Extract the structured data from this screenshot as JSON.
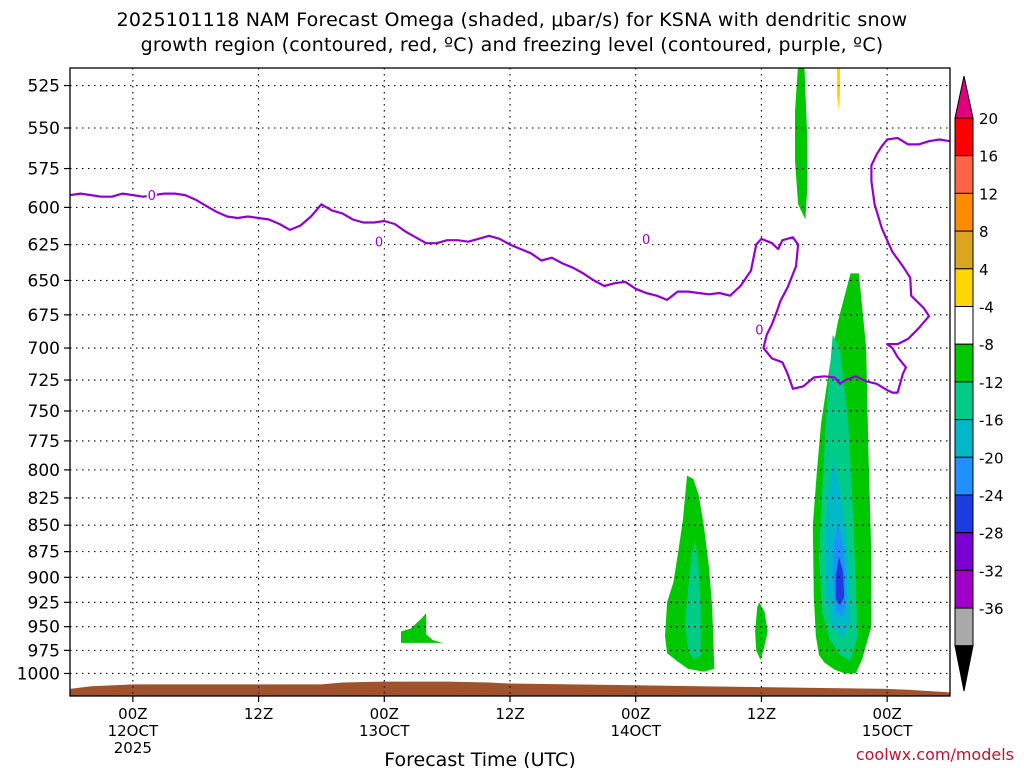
{
  "header": {
    "title_line1": "2025101118 NAM Forecast Omega (shaded, μbar/s) for KSNA with dendritic snow",
    "title_line2": "growth region (contoured, red, ºC) and freezing level (contoured, purple, ºC)"
  },
  "credit": "coolwx.com/models",
  "colors": {
    "terrain": "#a0522d",
    "freezing_line": "#9400d3",
    "grid": "#000000"
  },
  "chart_data": {
    "type": "heatmap",
    "title": "2025101118 NAM Forecast Omega (shaded, μbar/s) for KSNA with dendritic snow growth region (contoured, red, ºC) and freezing level (contoured, purple, ºC)",
    "xlabel": "Forecast Time (UTC)",
    "ylabel": "",
    "x_unit": "hours since 2025-10-11 18Z",
    "xlim": [
      0,
      84
    ],
    "ylim": [
      1025,
      515
    ],
    "y_scale": "log-pressure",
    "grid": true,
    "y_ticks": [
      525,
      550,
      575,
      600,
      625,
      650,
      675,
      700,
      725,
      750,
      775,
      800,
      825,
      850,
      875,
      900,
      925,
      950,
      975,
      1000
    ],
    "x_ticks": [
      {
        "x": 6,
        "label": "00Z",
        "sub": "12OCT",
        "sub2": "2025"
      },
      {
        "x": 18,
        "label": "12Z",
        "sub": "",
        "sub2": ""
      },
      {
        "x": 30,
        "label": "00Z",
        "sub": "13OCT",
        "sub2": ""
      },
      {
        "x": 42,
        "label": "12Z",
        "sub": "",
        "sub2": ""
      },
      {
        "x": 54,
        "label": "00Z",
        "sub": "14OCT",
        "sub2": ""
      },
      {
        "x": 66,
        "label": "12Z",
        "sub": "",
        "sub2": ""
      },
      {
        "x": 78,
        "label": "00Z",
        "sub": "15OCT",
        "sub2": ""
      }
    ],
    "colorbar": {
      "labels": [
        "20",
        "16",
        "12",
        "8",
        "4",
        "-4",
        "-8",
        "-12",
        "-16",
        "-20",
        "-24",
        "-28",
        "-32",
        "-36"
      ],
      "colors": [
        "#ff0000",
        "#ff6347",
        "#ff8c00",
        "#daa520",
        "#ffd700",
        "#ffffff",
        "#00c800",
        "#00cc88",
        "#00b8c8",
        "#1e90ff",
        "#1c3ce0",
        "#7b00d4",
        "#a000c8",
        "#a9a9a9"
      ],
      "top_arrow": "#e0007a",
      "bottom_arrow": "#000000"
    },
    "freezing_level": {
      "label": "0",
      "main": [
        [
          0,
          592
        ],
        [
          1,
          591
        ],
        [
          2,
          592
        ],
        [
          3,
          593
        ],
        [
          4,
          593
        ],
        [
          5,
          591
        ],
        [
          6,
          592
        ],
        [
          7,
          593
        ],
        [
          8,
          592
        ],
        [
          9,
          591
        ],
        [
          10,
          591
        ],
        [
          11,
          592
        ],
        [
          12,
          595
        ],
        [
          13,
          599
        ],
        [
          14,
          603
        ],
        [
          15,
          606
        ],
        [
          16,
          607
        ],
        [
          17,
          606
        ],
        [
          18,
          607
        ],
        [
          19,
          608
        ],
        [
          20,
          611
        ],
        [
          21,
          615
        ],
        [
          22,
          612
        ],
        [
          23,
          606
        ],
        [
          24,
          598
        ],
        [
          25,
          602
        ],
        [
          26,
          604
        ],
        [
          27,
          608
        ],
        [
          28,
          610
        ],
        [
          29,
          610
        ],
        [
          30,
          609
        ],
        [
          31,
          611
        ],
        [
          32,
          616
        ],
        [
          33,
          620
        ],
        [
          34,
          624
        ],
        [
          35,
          624
        ],
        [
          36,
          622
        ],
        [
          37,
          622
        ],
        [
          38,
          623
        ],
        [
          39,
          621
        ],
        [
          40,
          619
        ],
        [
          41,
          621
        ],
        [
          42,
          625
        ],
        [
          43,
          628
        ],
        [
          44,
          631
        ],
        [
          45,
          636
        ],
        [
          46,
          634
        ],
        [
          47,
          638
        ],
        [
          48,
          641
        ],
        [
          49,
          645
        ],
        [
          50,
          650
        ],
        [
          51,
          654
        ],
        [
          52,
          652
        ],
        [
          53,
          651
        ],
        [
          54,
          656
        ],
        [
          55,
          659
        ],
        [
          56,
          661
        ],
        [
          57,
          664
        ],
        [
          58,
          658
        ],
        [
          59,
          658
        ],
        [
          60,
          659
        ],
        [
          61,
          660
        ],
        [
          62,
          659
        ],
        [
          63,
          661
        ],
        [
          64,
          654
        ],
        [
          65,
          643
        ],
        [
          65.5,
          625
        ],
        [
          66,
          621
        ],
        [
          67,
          624
        ],
        [
          67.6,
          628
        ],
        [
          68,
          622
        ],
        [
          69,
          620
        ],
        [
          69.5,
          625
        ],
        [
          69.3,
          640
        ],
        [
          68.5,
          655
        ],
        [
          67.8,
          665
        ],
        [
          67.5,
          672
        ],
        [
          67,
          682
        ],
        [
          66.5,
          690
        ],
        [
          66.2,
          700
        ],
        [
          67,
          708
        ],
        [
          68,
          711
        ],
        [
          68.5,
          720
        ],
        [
          69,
          732
        ],
        [
          70,
          730
        ],
        [
          71,
          723
        ],
        [
          72,
          722
        ],
        [
          73,
          723
        ],
        [
          73.5,
          728
        ],
        [
          74,
          725
        ],
        [
          75,
          722
        ],
        [
          76,
          726
        ],
        [
          77,
          728
        ],
        [
          78,
          733
        ],
        [
          78.5,
          735
        ],
        [
          79,
          735
        ],
        [
          79.5,
          720
        ],
        [
          79.8,
          715
        ],
        [
          79,
          707
        ],
        [
          78.5,
          700
        ],
        [
          78,
          697
        ],
        [
          79,
          697
        ],
        [
          80,
          693
        ],
        [
          81,
          685
        ],
        [
          82,
          676
        ],
        [
          81.5,
          670
        ],
        [
          80.3,
          661
        ],
        [
          80.2,
          648
        ],
        [
          79.5,
          640
        ],
        [
          78.5,
          630
        ],
        [
          77.5,
          614
        ],
        [
          76.8,
          598
        ],
        [
          76.5,
          583
        ],
        [
          76.5,
          573
        ],
        [
          77,
          566
        ],
        [
          77.5,
          561
        ],
        [
          78,
          557
        ],
        [
          79,
          556
        ],
        [
          80,
          560
        ],
        [
          81,
          560
        ],
        [
          82,
          558
        ],
        [
          83,
          557
        ],
        [
          84,
          558
        ]
      ]
    },
    "omega_regions": [
      {
        "level": -4,
        "color": "#00c800",
        "points": [
          [
            31.6,
            955
          ],
          [
            32.5,
            952
          ],
          [
            33.5,
            942
          ],
          [
            34,
            936
          ],
          [
            34,
            958
          ],
          [
            34.6,
            964
          ],
          [
            35.6,
            967
          ],
          [
            33,
            967
          ],
          [
            31.6,
            967
          ]
        ]
      },
      {
        "level": -4,
        "color": "#00c800",
        "points": [
          [
            58.9,
            805
          ],
          [
            59.5,
            808
          ],
          [
            60,
            822
          ],
          [
            60.5,
            850
          ],
          [
            61,
            890
          ],
          [
            61.3,
            930
          ],
          [
            61.4,
            960
          ],
          [
            61.5,
            995
          ],
          [
            60.5,
            998
          ],
          [
            59,
            995
          ],
          [
            58,
            987
          ],
          [
            57,
            978
          ],
          [
            56.8,
            960
          ],
          [
            57,
            925
          ],
          [
            57.6,
            905
          ],
          [
            58.1,
            872
          ],
          [
            58.5,
            845
          ]
        ]
      },
      {
        "level": -8,
        "color": "#00cc88",
        "points": [
          [
            59.7,
            865
          ],
          [
            60,
            890
          ],
          [
            60.2,
            930
          ],
          [
            60.2,
            980
          ],
          [
            59.6,
            985
          ],
          [
            59,
            975
          ],
          [
            58.7,
            945
          ],
          [
            59,
            912
          ],
          [
            59.3,
            880
          ]
        ]
      },
      {
        "level": -4,
        "color": "#00c800",
        "points": [
          [
            65.8,
            925
          ],
          [
            66.3,
            935
          ],
          [
            66.6,
            955
          ],
          [
            66.2,
            975
          ],
          [
            65.9,
            985
          ],
          [
            65.5,
            975
          ],
          [
            65.4,
            955
          ],
          [
            65.6,
            930
          ]
        ]
      },
      {
        "level": -4,
        "color": "#00c800",
        "points": [
          [
            69.5,
            513
          ],
          [
            70.1,
            513
          ],
          [
            70.4,
            560
          ],
          [
            70.4,
            585
          ],
          [
            70.2,
            608
          ],
          [
            69.5,
            598
          ],
          [
            69.2,
            570
          ],
          [
            69.2,
            540
          ]
        ]
      },
      {
        "level": 4,
        "color": "#ffd700",
        "points": [
          [
            73.2,
            513
          ],
          [
            73.5,
            513
          ],
          [
            73.5,
            530
          ],
          [
            73.4,
            540
          ],
          [
            73.2,
            530
          ]
        ]
      },
      {
        "level": -4,
        "color": "#00c800",
        "points": [
          [
            74.5,
            645
          ],
          [
            75.3,
            645
          ],
          [
            76,
            700
          ],
          [
            76.2,
            780
          ],
          [
            76.5,
            880
          ],
          [
            76.5,
            950
          ],
          [
            75.6,
            985
          ],
          [
            75,
            1000
          ],
          [
            74,
            1000
          ],
          [
            73,
            996
          ],
          [
            72,
            988
          ],
          [
            71.5,
            980
          ],
          [
            71.2,
            960
          ],
          [
            71,
            920
          ],
          [
            70.9,
            850
          ],
          [
            71.3,
            800
          ],
          [
            71.7,
            760
          ],
          [
            72.5,
            715
          ],
          [
            73.3,
            680
          ]
        ]
      },
      {
        "level": -8,
        "color": "#00cc88",
        "points": [
          [
            72.8,
            690
          ],
          [
            73.5,
            700
          ],
          [
            74.3,
            760
          ],
          [
            74.8,
            850
          ],
          [
            75.2,
            960
          ],
          [
            74.5,
            986
          ],
          [
            73.5,
            980
          ],
          [
            72.5,
            963
          ],
          [
            71.8,
            935
          ],
          [
            71.5,
            880
          ],
          [
            71.8,
            820
          ],
          [
            72.2,
            750
          ]
        ]
      },
      {
        "level": -12,
        "color": "#00b8c8",
        "points": [
          [
            72.8,
            790
          ],
          [
            73.6,
            820
          ],
          [
            74.3,
            880
          ],
          [
            74.5,
            945
          ],
          [
            73.8,
            962
          ],
          [
            72.8,
            950
          ],
          [
            72.2,
            920
          ],
          [
            72.1,
            870
          ],
          [
            72.3,
            825
          ]
        ]
      },
      {
        "level": -16,
        "color": "#1e90ff",
        "points": [
          [
            73.3,
            848
          ],
          [
            73.9,
            875
          ],
          [
            74.1,
            920
          ],
          [
            73.8,
            940
          ],
          [
            73.1,
            935
          ],
          [
            72.8,
            905
          ],
          [
            72.9,
            870
          ]
        ]
      },
      {
        "level": -20,
        "color": "#1c3ce0",
        "points": [
          [
            73.4,
            880
          ],
          [
            73.8,
            895
          ],
          [
            73.9,
            920
          ],
          [
            73.5,
            928
          ],
          [
            73.1,
            922
          ],
          [
            73.1,
            898
          ]
        ]
      }
    ],
    "terrain_surface": [
      [
        0,
        1017
      ],
      [
        2,
        1014
      ],
      [
        6,
        1012
      ],
      [
        12,
        1012
      ],
      [
        18,
        1012
      ],
      [
        24,
        1012
      ],
      [
        26,
        1010
      ],
      [
        30,
        1009
      ],
      [
        36,
        1009
      ],
      [
        40,
        1010
      ],
      [
        42,
        1011
      ],
      [
        48,
        1012
      ],
      [
        54,
        1013
      ],
      [
        60,
        1014
      ],
      [
        66,
        1015
      ],
      [
        72,
        1016
      ],
      [
        78,
        1017
      ],
      [
        80,
        1018
      ],
      [
        84,
        1021
      ]
    ]
  }
}
